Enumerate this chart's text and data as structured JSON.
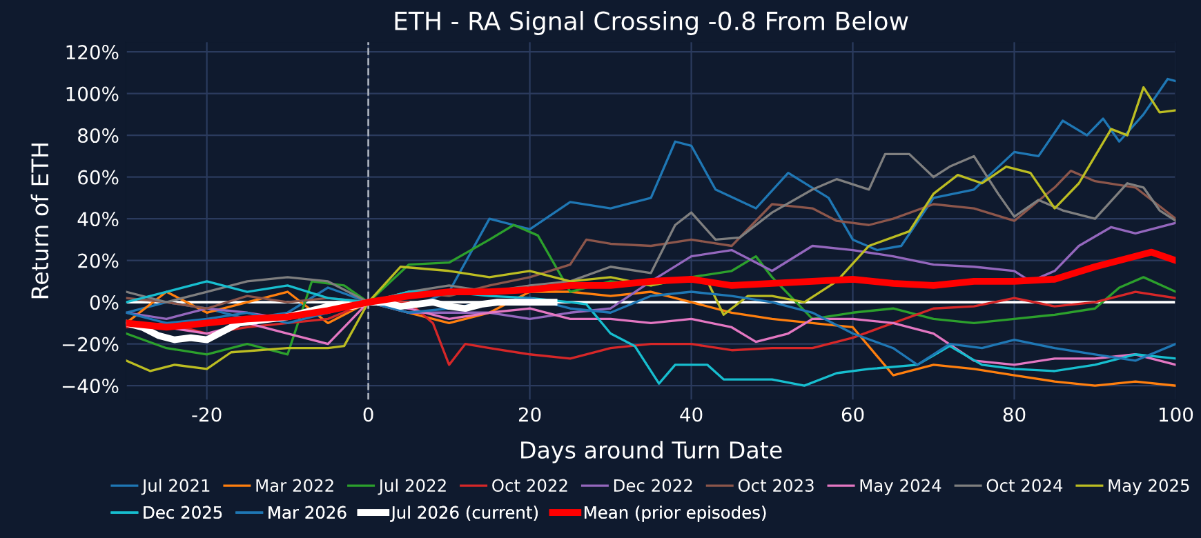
{
  "chart_data": {
    "type": "line",
    "title": "ETH - RA Signal Crossing -0.8 From Below",
    "xlabel": "Days around Turn Date",
    "ylabel": "Return of ETH",
    "xlim": [
      -30,
      100
    ],
    "xticks": [
      -20,
      0,
      20,
      40,
      60,
      80,
      100
    ],
    "ylim": [
      -47,
      125
    ],
    "yticks": [
      {
        "value": -40,
        "label": "−40%"
      },
      {
        "value": -20,
        "label": "−20%"
      },
      {
        "value": 0,
        "label": "0%"
      },
      {
        "value": 20,
        "label": "20%"
      },
      {
        "value": 40,
        "label": "40%"
      },
      {
        "value": 60,
        "label": "60%"
      },
      {
        "value": 80,
        "label": "80%"
      },
      {
        "value": 100,
        "label": "100%"
      },
      {
        "value": 120,
        "label": "120%"
      }
    ],
    "grid": true,
    "legend": "bottom",
    "marker": "none",
    "line_style": "solid",
    "ref_lines": [
      {
        "axis": "y",
        "value": 0,
        "color": "#ffffff",
        "line_style": "solid"
      },
      {
        "axis": "x",
        "value": 0,
        "color": "#aab0bb",
        "line_style": "dashed"
      }
    ],
    "series": [
      {
        "name": "Jul 2021",
        "color": "#1f77b4",
        "x": [
          -30,
          -25,
          -20,
          -15,
          -10,
          -5,
          0,
          5,
          10,
          15,
          20,
          25,
          30,
          35,
          38,
          40,
          43,
          48,
          52,
          57,
          60,
          63,
          66,
          70,
          75,
          80,
          83,
          86,
          89,
          91,
          93,
          96,
          99,
          100
        ],
        "values": [
          -5,
          0,
          -3,
          -8,
          -5,
          7,
          0,
          -3,
          5,
          40,
          35,
          48,
          45,
          50,
          77,
          75,
          54,
          45,
          62,
          50,
          30,
          25,
          27,
          50,
          54,
          72,
          70,
          87,
          80,
          88,
          77,
          90,
          107,
          106
        ]
      },
      {
        "name": "Mar 2022",
        "color": "#ff7f0e",
        "x": [
          -30,
          -25,
          -20,
          -15,
          -10,
          -5,
          0,
          5,
          10,
          15,
          20,
          25,
          30,
          35,
          40,
          45,
          50,
          55,
          60,
          65,
          70,
          75,
          80,
          85,
          90,
          95,
          100
        ],
        "values": [
          -10,
          5,
          -5,
          0,
          5,
          -10,
          0,
          -5,
          -10,
          -5,
          5,
          5,
          3,
          5,
          0,
          -5,
          -8,
          -10,
          -12,
          -35,
          -30,
          -32,
          -35,
          -38,
          -40,
          -38,
          -40
        ]
      },
      {
        "name": "Jul 2022",
        "color": "#2ca02c",
        "x": [
          -30,
          -25,
          -20,
          -15,
          -10,
          -7,
          -3,
          0,
          5,
          10,
          15,
          18,
          21,
          25,
          30,
          35,
          40,
          45,
          48,
          50,
          55,
          60,
          65,
          70,
          75,
          80,
          85,
          90,
          93,
          96,
          100
        ],
        "values": [
          -15,
          -22,
          -25,
          -20,
          -25,
          10,
          8,
          0,
          18,
          19,
          30,
          37,
          32,
          5,
          10,
          8,
          12,
          15,
          22,
          12,
          -8,
          -5,
          -3,
          -8,
          -10,
          -8,
          -6,
          -3,
          7,
          12,
          5
        ]
      },
      {
        "name": "Oct 2022",
        "color": "#d62728",
        "x": [
          -30,
          -25,
          -20,
          -15,
          -10,
          -5,
          0,
          5,
          8,
          10,
          12,
          15,
          20,
          25,
          30,
          35,
          40,
          45,
          50,
          55,
          60,
          65,
          70,
          75,
          80,
          85,
          90,
          95,
          100
        ],
        "values": [
          -12,
          -10,
          -15,
          -12,
          -10,
          -8,
          0,
          0,
          -10,
          -30,
          -20,
          -22,
          -25,
          -27,
          -22,
          -20,
          -20,
          -23,
          -22,
          -22,
          -17,
          -10,
          -3,
          -2,
          2,
          -2,
          0,
          5,
          2
        ]
      },
      {
        "name": "Dec 2022",
        "color": "#9467bd",
        "x": [
          -30,
          -25,
          -20,
          -15,
          -10,
          -5,
          0,
          5,
          10,
          15,
          20,
          25,
          30,
          35,
          40,
          45,
          50,
          55,
          60,
          65,
          70,
          75,
          80,
          82,
          85,
          88,
          92,
          95,
          100
        ],
        "values": [
          -5,
          -8,
          -3,
          -5,
          -8,
          -5,
          0,
          -5,
          -5,
          -5,
          -8,
          -5,
          -3,
          10,
          22,
          25,
          15,
          27,
          25,
          22,
          18,
          17,
          15,
          10,
          15,
          27,
          36,
          33,
          38
        ]
      },
      {
        "name": "Oct 2023",
        "color": "#8c564b",
        "x": [
          -30,
          -25,
          -20,
          -15,
          -10,
          -5,
          0,
          5,
          10,
          15,
          20,
          25,
          27,
          30,
          35,
          40,
          45,
          50,
          55,
          58,
          62,
          65,
          70,
          75,
          80,
          85,
          87,
          90,
          95,
          100
        ],
        "values": [
          2,
          0,
          -3,
          3,
          0,
          2,
          0,
          5,
          3,
          8,
          12,
          18,
          30,
          28,
          27,
          30,
          27,
          47,
          45,
          39,
          37,
          40,
          47,
          45,
          39,
          55,
          63,
          58,
          55,
          40
        ]
      },
      {
        "name": "May 2024",
        "color": "#e377c2",
        "x": [
          -30,
          -25,
          -20,
          -15,
          -10,
          -5,
          0,
          5,
          10,
          15,
          20,
          25,
          30,
          35,
          40,
          45,
          48,
          52,
          55,
          60,
          65,
          70,
          75,
          80,
          85,
          90,
          95,
          100
        ],
        "values": [
          -10,
          -12,
          -15,
          -10,
          -15,
          -20,
          0,
          -3,
          -8,
          -5,
          -3,
          -8,
          -8,
          -10,
          -8,
          -12,
          -19,
          -15,
          -8,
          -8,
          -10,
          -15,
          -28,
          -30,
          -27,
          -27,
          -25,
          -30
        ]
      },
      {
        "name": "Oct 2024",
        "color": "#7f7f7f",
        "x": [
          -30,
          -25,
          -20,
          -15,
          -10,
          -5,
          0,
          5,
          10,
          15,
          20,
          25,
          30,
          35,
          38,
          40,
          43,
          46,
          50,
          55,
          58,
          62,
          64,
          67,
          70,
          72,
          75,
          78,
          80,
          83,
          86,
          90,
          94,
          96,
          98,
          100
        ],
        "values": [
          5,
          0,
          5,
          10,
          12,
          10,
          0,
          5,
          8,
          5,
          8,
          10,
          17,
          14,
          37,
          43,
          30,
          31,
          43,
          54,
          59,
          54,
          71,
          71,
          60,
          65,
          70,
          52,
          41,
          49,
          44,
          40,
          57,
          55,
          44,
          39
        ]
      },
      {
        "name": "May 2025",
        "color": "#bcbd22",
        "x": [
          -30,
          -27,
          -24,
          -20,
          -17,
          -10,
          -5,
          -3,
          0,
          4,
          10,
          15,
          20,
          25,
          30,
          35,
          40,
          42,
          44,
          47,
          50,
          54,
          58,
          62,
          67,
          70,
          73,
          76,
          79,
          82,
          85,
          88,
          90,
          92,
          94,
          96,
          98,
          100
        ],
        "values": [
          -28,
          -33,
          -30,
          -32,
          -24,
          -22,
          -22,
          -21,
          0,
          17,
          15,
          12,
          15,
          10,
          12,
          8,
          12,
          10,
          -6,
          3,
          3,
          0,
          10,
          27,
          34,
          52,
          61,
          57,
          65,
          62,
          45,
          57,
          70,
          83,
          80,
          103,
          91,
          92
        ]
      },
      {
        "name": "Dec 2025",
        "color": "#17becf",
        "x": [
          -30,
          -25,
          -20,
          -15,
          -10,
          -5,
          0,
          5,
          10,
          15,
          20,
          25,
          27,
          30,
          33,
          36,
          38,
          42,
          44,
          50,
          54,
          58,
          62,
          68,
          72,
          76,
          80,
          85,
          90,
          95,
          100
        ],
        "values": [
          0,
          5,
          10,
          5,
          8,
          2,
          0,
          5,
          5,
          3,
          2,
          0,
          -1,
          -15,
          -21,
          -39,
          -30,
          -30,
          -37,
          -37,
          -40,
          -34,
          -32,
          -30,
          -21,
          -30,
          -32,
          -33,
          -30,
          -25,
          -27
        ]
      },
      {
        "name": "Mar 2026",
        "color": "#1f77b4",
        "x": [
          -30,
          -25,
          -20,
          -15,
          -10,
          -5,
          0,
          5,
          10,
          15,
          20,
          25,
          30,
          35,
          40,
          45,
          50,
          55,
          60,
          65,
          68,
          72,
          76,
          80,
          85,
          90,
          95,
          100
        ],
        "values": [
          -5,
          -10,
          -8,
          -5,
          -10,
          -5,
          0,
          -5,
          -3,
          0,
          2,
          -3,
          -5,
          3,
          5,
          3,
          0,
          -5,
          -15,
          -22,
          -30,
          -20,
          -22,
          -18,
          -22,
          -25,
          -28,
          -20
        ]
      },
      {
        "name": "Jul 2026 (current)",
        "color": "#ffffff",
        "x": [
          -30,
          -28,
          -26,
          -24,
          -22,
          -20,
          -18,
          -16,
          -14,
          -12,
          -10,
          -8,
          -6,
          -4,
          -2,
          0,
          2,
          4,
          6,
          8,
          10,
          12,
          14,
          16,
          18,
          20,
          23
        ],
        "values": [
          -10,
          -12,
          -16,
          -18,
          -17,
          -18,
          -14,
          -10,
          -9,
          -8,
          -7,
          -5,
          -3,
          -1,
          -2,
          0,
          0,
          -2,
          -1,
          0,
          -2,
          -3,
          -1,
          0,
          0,
          0,
          0
        ]
      },
      {
        "name": "Mean (prior episodes)",
        "color": "#ff0000",
        "x": [
          -30,
          -25,
          -20,
          -15,
          -10,
          -5,
          0,
          5,
          10,
          15,
          20,
          25,
          30,
          35,
          40,
          45,
          50,
          55,
          60,
          65,
          70,
          75,
          80,
          85,
          90,
          94,
          97,
          100
        ],
        "values": [
          -10,
          -12,
          -10,
          -8,
          -7,
          -4,
          0,
          3,
          5,
          5,
          6,
          8,
          8,
          10,
          11,
          8,
          9,
          10,
          11,
          9,
          8,
          10,
          10,
          11,
          17,
          21,
          24,
          20
        ]
      }
    ]
  }
}
